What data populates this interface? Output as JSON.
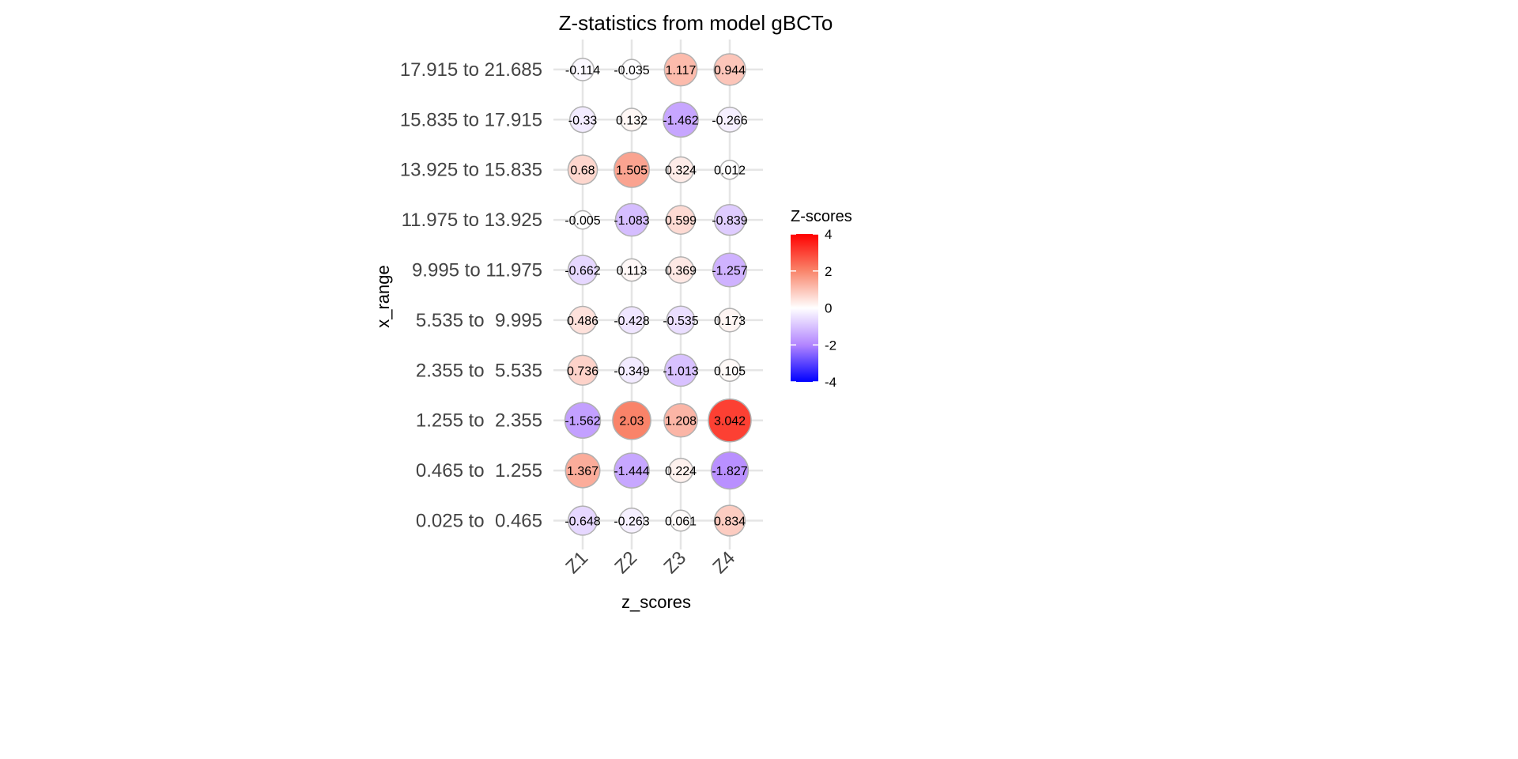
{
  "chart_data": {
    "type": "scatter",
    "title": "Z-statistics from model gBCTo",
    "xlabel": "z_scores",
    "ylabel": "x_range",
    "x_categories": [
      "Z1",
      "Z2",
      "Z3",
      "Z4"
    ],
    "y_categories": [
      "0.025 to  0.465",
      "0.465 to  1.255",
      "1.255 to  2.355",
      "2.355 to  5.535",
      "5.535 to  9.995",
      "9.995 to 11.975",
      "11.975 to 13.925",
      "13.925 to 15.835",
      "15.835 to 17.915",
      "17.915 to 21.685"
    ],
    "values": [
      [
        -0.648,
        -0.263,
        0.061,
        0.834
      ],
      [
        1.367,
        -1.444,
        0.224,
        -1.827
      ],
      [
        -1.562,
        2.03,
        1.208,
        3.042
      ],
      [
        0.736,
        -0.349,
        -1.013,
        0.105
      ],
      [
        0.486,
        -0.428,
        -0.535,
        0.173
      ],
      [
        -0.662,
        0.113,
        0.369,
        -1.257
      ],
      [
        -0.005,
        -1.083,
        0.599,
        -0.839
      ],
      [
        0.68,
        1.505,
        0.324,
        0.012
      ],
      [
        -0.33,
        0.132,
        -1.462,
        -0.266
      ],
      [
        -0.114,
        -0.035,
        1.117,
        0.944
      ]
    ],
    "legend": {
      "title": "Z-scores",
      "ticks": [
        4,
        2,
        0,
        -2,
        -4
      ],
      "range": [
        -4,
        4
      ],
      "low_color": "#0000FF",
      "mid_color": "#FFFFFF",
      "high_color": "#FF0000",
      "placement": "right"
    },
    "grid": true
  }
}
